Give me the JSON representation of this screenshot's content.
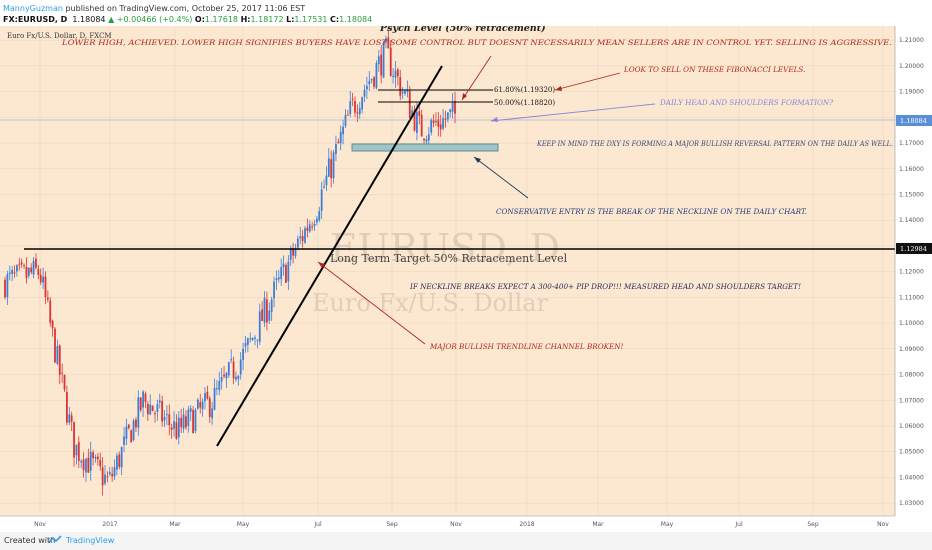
{
  "header": {
    "author": "MannyGuzman",
    "published": "published on TradingView.com, October 25, 2017 11:06 EST",
    "symbol": "FX:EURUSD, D",
    "last": "1.18084",
    "change": "+0.00466 (+0.4%)",
    "ohlc": {
      "O": "1.17618",
      "H": "1.18172",
      "L": "1.17531",
      "C": "1.18084"
    },
    "legend": "Euro Fx/U.S. Dollar, D, FXCM"
  },
  "footer": {
    "created_with": "Created with",
    "brand": "TradingView"
  },
  "watermark": {
    "line1": "EURUSD, D",
    "line2": "Euro Fx/U.S. Dollar"
  },
  "colors": {
    "background": "#fce8d0",
    "up": "#3b7dd8",
    "down": "#d83535",
    "price_tag": "#5a8fd8",
    "level_tag": "#111111"
  },
  "chart_data": {
    "type": "candlestick",
    "symbol": "FX:EURUSD",
    "timeframe": "D",
    "x_ticks": [
      "Nov",
      "2017",
      "Mar",
      "May",
      "Jul",
      "Sep",
      "Nov",
      "2018",
      "Mar",
      "May",
      "Jul",
      "Sep",
      "Nov"
    ],
    "y_ticks": [
      "1.21000",
      "1.20000",
      "1.19000",
      "1.18000",
      "1.17000",
      "1.16000",
      "1.15000",
      "1.14000",
      "1.13000",
      "1.12000",
      "1.11000",
      "1.10000",
      "1.09000",
      "1.08000",
      "1.07000",
      "1.06000",
      "1.05000",
      "1.04000",
      "1.03000"
    ],
    "ylim": [
      1.025,
      1.2155
    ],
    "last_price": "1.18084",
    "horizontal_level_label": "1.12984",
    "horizontal_level": 1.12984,
    "fib_levels": [
      {
        "label": "61.80%(1.19320)",
        "value": 1.1932
      },
      {
        "label": "50.00%(1.18820)",
        "value": 1.1882
      }
    ],
    "price_path_checkpoints": [
      {
        "x": "Oct 2016",
        "y": 1.116
      },
      {
        "x": "Nov 2016",
        "y": 1.12
      },
      {
        "x": "Dec 2016",
        "y": 1.052
      },
      {
        "x": "Jan 2017",
        "y": 1.038
      },
      {
        "x": "Feb 2017",
        "y": 1.07
      },
      {
        "x": "Mar 2017",
        "y": 1.058
      },
      {
        "x": "Apr 2017",
        "y": 1.07
      },
      {
        "x": "May 2017",
        "y": 1.09
      },
      {
        "x": "Jun 2017",
        "y": 1.118
      },
      {
        "x": "Jul 2017",
        "y": 1.145
      },
      {
        "x": "Aug 2017",
        "y": 1.183
      },
      {
        "x": "Sep 2017",
        "y": 1.205
      },
      {
        "x": "Oct 2017",
        "y": 1.175
      },
      {
        "x": "Oct 25 2017",
        "y": 1.18084
      }
    ],
    "annotations": {
      "title": "Psych Level (50% retracement)",
      "top_note": "LOWER HIGH, ACHIEVED. LOWER HIGH SIGNIFIES BUYERS HAVE LOST SOME CONTROL BUT DOESNT NECESSARILY MEAN SELLERS ARE IN CONTROL YET. SELLING IS AGGRESSIVE.",
      "fib_note": "LOOK TO SELL ON THESE FIBONACCI LEVELS.",
      "hs_note": "DAILY HEAD AND SHOULDERS FORMATION?",
      "dxy_note": "KEEP IN MIND THE DXY IS FORMING A MAJOR BULLISH REVERSAL PATTERN ON THE DAILY AS WELL.",
      "entry_note": "CONSERVATIVE ENTRY IS THE BREAK OF THE NECKLINE ON THE DAILY CHART.",
      "target_note": "Long Term Target 50% Retracement Level",
      "pip_note": "IF NECKLINE BREAKS EXPECT A 300-400+ PIP DROP!!! MEASURED HEAD AND SHOULDERS TARGET!",
      "trend_note": "MAJOR BULLISH TRENDLINE CHANNEL BROKEN!"
    }
  }
}
